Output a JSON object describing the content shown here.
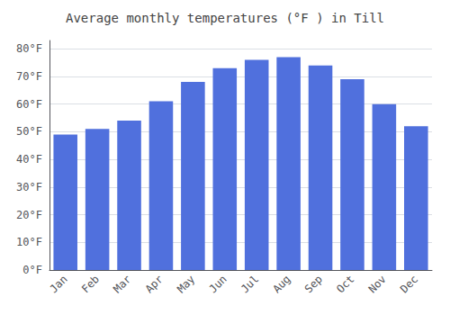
{
  "chart_data": {
    "type": "bar",
    "title": "Average monthly temperatures (°F ) in Till",
    "categories": [
      "Jan",
      "Feb",
      "Mar",
      "Apr",
      "May",
      "Jun",
      "Jul",
      "Aug",
      "Sep",
      "Oct",
      "Nov",
      "Dec"
    ],
    "values": [
      49,
      51,
      54,
      61,
      68,
      73,
      76,
      77,
      74,
      69,
      60,
      52
    ],
    "ylim": [
      0,
      83
    ],
    "yticks": [
      {
        "value": 0,
        "label": "0°F"
      },
      {
        "value": 10,
        "label": "10°F"
      },
      {
        "value": 20,
        "label": "20°F"
      },
      {
        "value": 30,
        "label": "30°F"
      },
      {
        "value": 40,
        "label": "40°F"
      },
      {
        "value": 50,
        "label": "50°F"
      },
      {
        "value": 60,
        "label": "60°F"
      },
      {
        "value": 70,
        "label": "70°F"
      },
      {
        "value": 80,
        "label": "80°F"
      }
    ],
    "grid": true
  }
}
